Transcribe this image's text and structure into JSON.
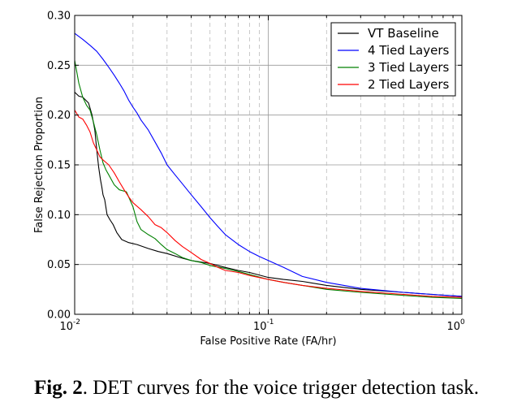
{
  "chart_data": {
    "type": "line",
    "xlabel": "False Positive Rate (FA/hr)",
    "ylabel": "False Rejection Proportion",
    "xscale": "log",
    "xlim": [
      0.01,
      1
    ],
    "ylim": [
      0,
      0.3
    ],
    "y_ticks": [
      "0.00",
      "0.05",
      "0.10",
      "0.15",
      "0.20",
      "0.25",
      "0.30"
    ],
    "x_ticks": [
      {
        "base": "10",
        "exp": "-2"
      },
      {
        "base": "10",
        "exp": "-1"
      },
      {
        "base": "10",
        "exp": "0"
      }
    ],
    "grid": true,
    "legend_position": "top-right",
    "series": [
      {
        "name": "VT Baseline",
        "color": "#000000",
        "x": [
          0.01,
          0.0105,
          0.011,
          0.0118,
          0.0123,
          0.0127,
          0.013,
          0.0133,
          0.0136,
          0.0138,
          0.014,
          0.0143,
          0.0147,
          0.0152,
          0.0158,
          0.0165,
          0.0175,
          0.019,
          0.021,
          0.024,
          0.027,
          0.03,
          0.035,
          0.04,
          0.05,
          0.06,
          0.07,
          0.08,
          0.1,
          0.12,
          0.15,
          0.2,
          0.3,
          0.5,
          0.7,
          1.0
        ],
        "y": [
          0.223,
          0.219,
          0.218,
          0.212,
          0.2,
          0.185,
          0.165,
          0.148,
          0.135,
          0.128,
          0.12,
          0.115,
          0.1,
          0.095,
          0.09,
          0.082,
          0.075,
          0.072,
          0.07,
          0.066,
          0.063,
          0.061,
          0.057,
          0.054,
          0.051,
          0.047,
          0.044,
          0.042,
          0.037,
          0.035,
          0.033,
          0.029,
          0.025,
          0.022,
          0.02,
          0.018
        ]
      },
      {
        "name": "4 Tied Layers",
        "color": "#0000ff",
        "x": [
          0.01,
          0.011,
          0.012,
          0.013,
          0.014,
          0.015,
          0.016,
          0.017,
          0.018,
          0.019,
          0.02,
          0.021,
          0.022,
          0.024,
          0.026,
          0.028,
          0.03,
          0.033,
          0.036,
          0.04,
          0.045,
          0.05,
          0.055,
          0.06,
          0.07,
          0.08,
          0.09,
          0.1,
          0.12,
          0.15,
          0.2,
          0.3,
          0.5,
          0.7,
          1.0
        ],
        "y": [
          0.282,
          0.276,
          0.27,
          0.264,
          0.256,
          0.248,
          0.24,
          0.232,
          0.224,
          0.215,
          0.208,
          0.202,
          0.195,
          0.185,
          0.173,
          0.162,
          0.15,
          0.14,
          0.131,
          0.12,
          0.108,
          0.097,
          0.088,
          0.08,
          0.07,
          0.063,
          0.058,
          0.054,
          0.047,
          0.038,
          0.032,
          0.026,
          0.022,
          0.02,
          0.018
        ]
      },
      {
        "name": "3 Tied Layers",
        "color": "#008000",
        "x": [
          0.01,
          0.0105,
          0.011,
          0.0115,
          0.012,
          0.0125,
          0.013,
          0.0135,
          0.014,
          0.0145,
          0.015,
          0.016,
          0.017,
          0.0185,
          0.02,
          0.021,
          0.022,
          0.024,
          0.026,
          0.028,
          0.03,
          0.033,
          0.036,
          0.04,
          0.045,
          0.05,
          0.06,
          0.07,
          0.08,
          0.1,
          0.12,
          0.15,
          0.2,
          0.3,
          0.5,
          0.7,
          1.0
        ],
        "y": [
          0.255,
          0.232,
          0.218,
          0.21,
          0.205,
          0.193,
          0.18,
          0.165,
          0.152,
          0.145,
          0.14,
          0.13,
          0.125,
          0.123,
          0.108,
          0.093,
          0.085,
          0.08,
          0.076,
          0.07,
          0.065,
          0.061,
          0.057,
          0.054,
          0.052,
          0.049,
          0.046,
          0.043,
          0.04,
          0.035,
          0.032,
          0.029,
          0.025,
          0.022,
          0.019,
          0.017,
          0.016
        ]
      },
      {
        "name": "2 Tied Layers",
        "color": "#ff0000",
        "x": [
          0.01,
          0.0105,
          0.011,
          0.0115,
          0.012,
          0.0125,
          0.013,
          0.0135,
          0.014,
          0.015,
          0.016,
          0.017,
          0.018,
          0.019,
          0.02,
          0.022,
          0.024,
          0.026,
          0.028,
          0.03,
          0.033,
          0.036,
          0.04,
          0.045,
          0.05,
          0.055,
          0.06,
          0.07,
          0.08,
          0.1,
          0.12,
          0.15,
          0.2,
          0.3,
          0.5,
          0.7,
          1.0
        ],
        "y": [
          0.205,
          0.198,
          0.196,
          0.19,
          0.183,
          0.172,
          0.165,
          0.158,
          0.155,
          0.15,
          0.142,
          0.133,
          0.125,
          0.118,
          0.112,
          0.105,
          0.098,
          0.09,
          0.087,
          0.082,
          0.074,
          0.068,
          0.062,
          0.055,
          0.051,
          0.047,
          0.044,
          0.042,
          0.039,
          0.035,
          0.032,
          0.029,
          0.026,
          0.023,
          0.02,
          0.018,
          0.017
        ]
      }
    ]
  },
  "caption": {
    "label": "Fig. 2",
    "text": ". DET curves for the voice trigger detection task."
  }
}
